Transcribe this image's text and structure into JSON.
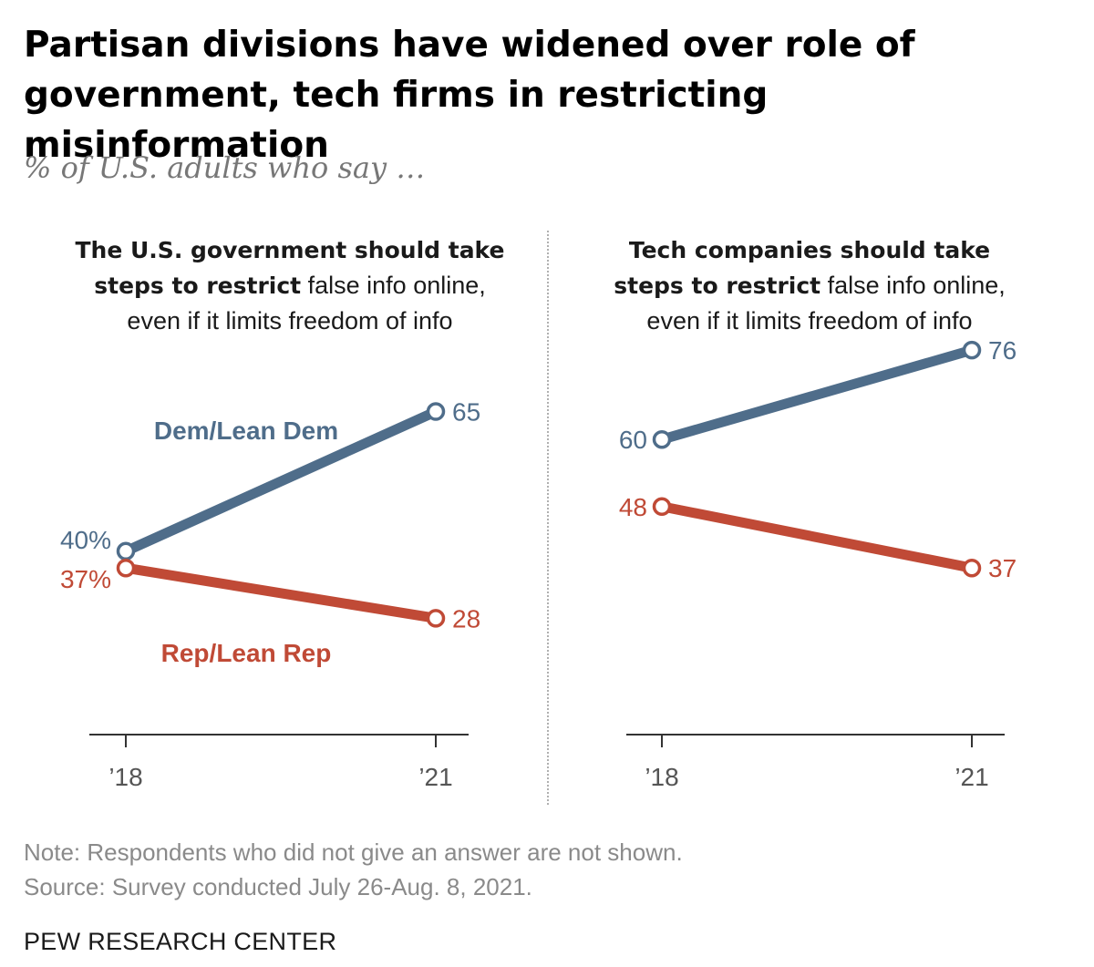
{
  "title_line1": "Partisan divisions have widened over role of",
  "title_line2": "government, tech firms in restricting misinformation",
  "subtitle": "% of U.S. adults who say …",
  "colors": {
    "dem": "#4f6d8a",
    "rep": "#c04a36",
    "axis": "#333333"
  },
  "chart_data": [
    {
      "type": "line",
      "title_bold_1": "The U.S. government should take",
      "title_bold_2": "steps to restrict",
      "title_rest_2": " false info online,",
      "title_line3": "even if it limits freedom of info",
      "x": [
        "’18",
        "’21"
      ],
      "ylim": [
        0,
        100
      ],
      "series": [
        {
          "name": "Dem/Lean Dem",
          "values": [
            40,
            65
          ],
          "labels": [
            "40%",
            "65"
          ]
        },
        {
          "name": "Rep/Lean Rep",
          "values": [
            37,
            28
          ],
          "labels": [
            "37%",
            "28"
          ]
        }
      ]
    },
    {
      "type": "line",
      "title_bold_1": "Tech companies should take",
      "title_bold_2": "steps to restrict",
      "title_rest_2": " false info online,",
      "title_line3": "even if it limits freedom of info",
      "x": [
        "’18",
        "’21"
      ],
      "ylim": [
        0,
        100
      ],
      "series": [
        {
          "name": "Dem/Lean Dem",
          "values": [
            60,
            76
          ],
          "labels": [
            "60",
            "76"
          ]
        },
        {
          "name": "Rep/Lean Rep",
          "values": [
            48,
            37
          ],
          "labels": [
            "48",
            "37"
          ]
        }
      ]
    }
  ],
  "note": "Note: Respondents who did not give an answer are not shown.",
  "source": "Source: Survey conducted July 26-Aug. 8, 2021.",
  "brand": "PEW RESEARCH CENTER"
}
